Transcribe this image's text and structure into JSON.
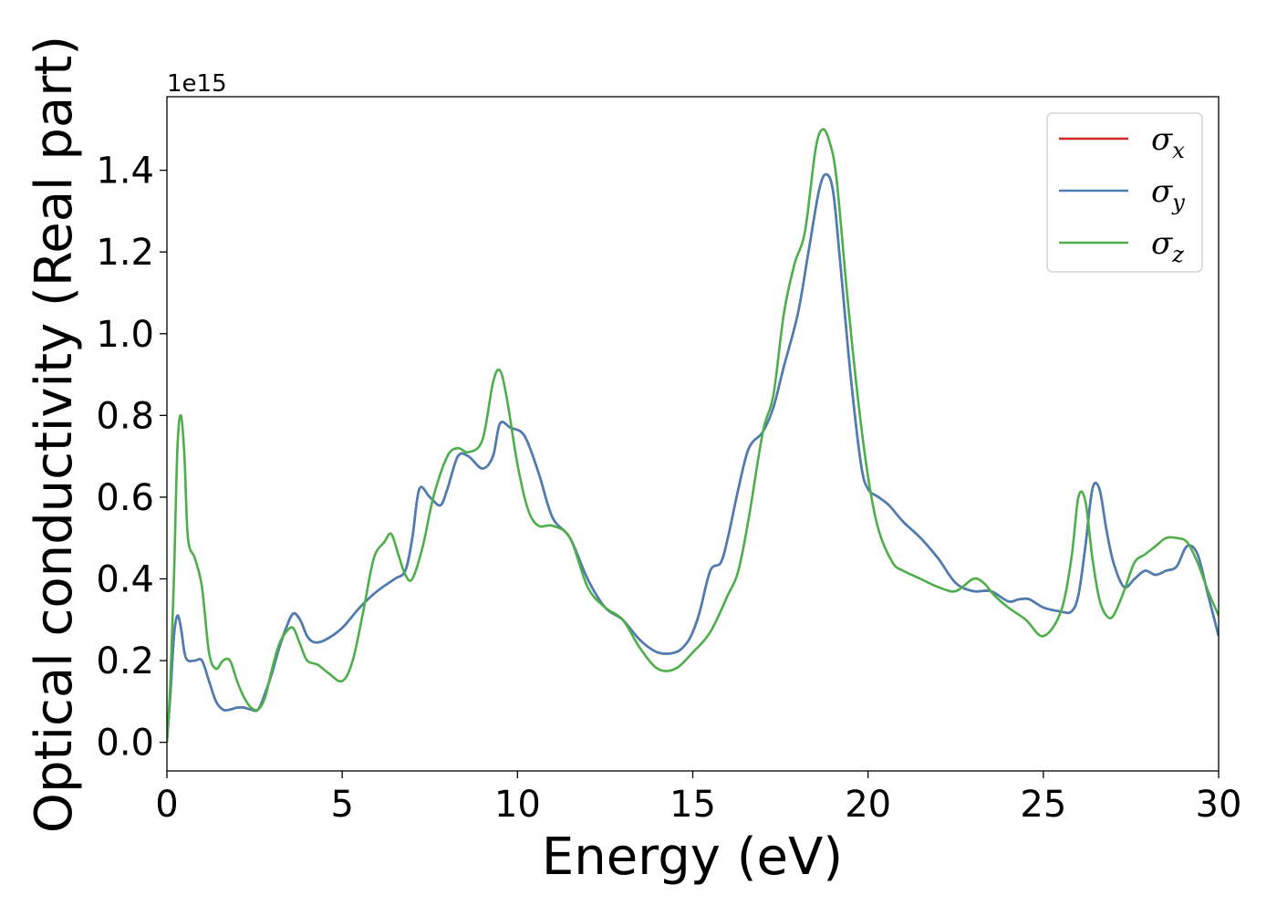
{
  "chart_data": {
    "type": "line",
    "xlabel": "Energy (eV)",
    "ylabel": "Optical conductivity (Real part)",
    "y_offset_label": "1e15",
    "xlim": [
      0,
      30
    ],
    "ylim": [
      -0.07,
      1.58
    ],
    "x_ticks": [
      0,
      5,
      10,
      15,
      20,
      25,
      30
    ],
    "x_tick_labels": [
      "0",
      "5",
      "10",
      "15",
      "20",
      "25",
      "30"
    ],
    "y_ticks": [
      0.0,
      0.2,
      0.4,
      0.6,
      0.8,
      1.0,
      1.2,
      1.4
    ],
    "y_tick_labels": [
      "0.0",
      "0.2",
      "0.4",
      "0.6",
      "0.8",
      "1.0",
      "1.2",
      "1.4"
    ],
    "grid": false,
    "legend_position": "top-right",
    "series": [
      {
        "name": "σ",
        "subscript": "x",
        "color": "#d62728",
        "x": [
          0,
          0.1,
          0.2,
          0.3,
          0.4,
          0.5,
          0.6,
          0.8,
          1.0,
          1.2,
          1.4,
          1.6,
          1.8,
          2.0,
          2.2,
          2.4,
          2.6,
          2.8,
          3.0,
          3.2,
          3.4,
          3.6,
          3.8,
          4.0,
          4.2,
          4.5,
          5.0,
          5.5,
          6.0,
          6.5,
          6.8,
          7.0,
          7.2,
          7.5,
          7.8,
          8.0,
          8.3,
          8.6,
          9.0,
          9.3,
          9.5,
          9.8,
          10.2,
          10.6,
          11.0,
          11.5,
          12.0,
          12.5,
          13.0,
          13.5,
          14.0,
          14.5,
          14.8,
          15.0,
          15.2,
          15.5,
          15.8,
          16.0,
          16.3,
          16.6,
          17.0,
          17.3,
          17.6,
          18.0,
          18.3,
          18.6,
          18.8,
          19.0,
          19.2,
          19.5,
          19.8,
          20.0,
          20.3,
          20.6,
          21.0,
          21.5,
          22.0,
          22.5,
          23.0,
          23.5,
          24.0,
          24.3,
          24.6,
          25.0,
          25.5,
          25.8,
          26.0,
          26.2,
          26.4,
          26.6,
          26.8,
          27.0,
          27.3,
          27.6,
          27.9,
          28.2,
          28.5,
          28.8,
          29.1,
          29.4,
          29.7,
          30.0
        ],
        "values": [
          0.0,
          0.12,
          0.26,
          0.31,
          0.28,
          0.22,
          0.2,
          0.2,
          0.2,
          0.15,
          0.1,
          0.08,
          0.08,
          0.085,
          0.085,
          0.08,
          0.08,
          0.12,
          0.17,
          0.23,
          0.28,
          0.315,
          0.3,
          0.26,
          0.245,
          0.25,
          0.28,
          0.33,
          0.37,
          0.4,
          0.42,
          0.5,
          0.62,
          0.6,
          0.58,
          0.62,
          0.7,
          0.7,
          0.67,
          0.7,
          0.78,
          0.77,
          0.75,
          0.66,
          0.55,
          0.5,
          0.4,
          0.33,
          0.3,
          0.25,
          0.22,
          0.22,
          0.24,
          0.27,
          0.32,
          0.42,
          0.44,
          0.5,
          0.62,
          0.72,
          0.76,
          0.82,
          0.92,
          1.05,
          1.2,
          1.35,
          1.39,
          1.35,
          1.18,
          0.9,
          0.68,
          0.62,
          0.6,
          0.58,
          0.54,
          0.5,
          0.45,
          0.39,
          0.37,
          0.37,
          0.345,
          0.35,
          0.35,
          0.33,
          0.32,
          0.32,
          0.36,
          0.48,
          0.62,
          0.62,
          0.52,
          0.44,
          0.38,
          0.4,
          0.42,
          0.41,
          0.42,
          0.43,
          0.48,
          0.46,
          0.36,
          0.26
        ]
      },
      {
        "name": "σ",
        "subscript": "y",
        "color": "#4a7fb5",
        "x": [
          0,
          0.1,
          0.2,
          0.3,
          0.4,
          0.5,
          0.6,
          0.8,
          1.0,
          1.2,
          1.4,
          1.6,
          1.8,
          2.0,
          2.2,
          2.4,
          2.6,
          2.8,
          3.0,
          3.2,
          3.4,
          3.6,
          3.8,
          4.0,
          4.2,
          4.5,
          5.0,
          5.5,
          6.0,
          6.5,
          6.8,
          7.0,
          7.2,
          7.5,
          7.8,
          8.0,
          8.3,
          8.6,
          9.0,
          9.3,
          9.5,
          9.8,
          10.2,
          10.6,
          11.0,
          11.5,
          12.0,
          12.5,
          13.0,
          13.5,
          14.0,
          14.5,
          14.8,
          15.0,
          15.2,
          15.5,
          15.8,
          16.0,
          16.3,
          16.6,
          17.0,
          17.3,
          17.6,
          18.0,
          18.3,
          18.6,
          18.8,
          19.0,
          19.2,
          19.5,
          19.8,
          20.0,
          20.3,
          20.6,
          21.0,
          21.5,
          22.0,
          22.5,
          23.0,
          23.5,
          24.0,
          24.3,
          24.6,
          25.0,
          25.5,
          25.8,
          26.0,
          26.2,
          26.4,
          26.6,
          26.8,
          27.0,
          27.3,
          27.6,
          27.9,
          28.2,
          28.5,
          28.8,
          29.1,
          29.4,
          29.7,
          30.0
        ],
        "values": [
          0.0,
          0.12,
          0.26,
          0.31,
          0.28,
          0.22,
          0.2,
          0.2,
          0.2,
          0.15,
          0.1,
          0.08,
          0.08,
          0.085,
          0.085,
          0.08,
          0.08,
          0.12,
          0.17,
          0.23,
          0.28,
          0.315,
          0.3,
          0.26,
          0.245,
          0.25,
          0.28,
          0.33,
          0.37,
          0.4,
          0.42,
          0.5,
          0.62,
          0.6,
          0.58,
          0.62,
          0.7,
          0.7,
          0.67,
          0.7,
          0.78,
          0.77,
          0.75,
          0.66,
          0.55,
          0.5,
          0.4,
          0.33,
          0.3,
          0.25,
          0.22,
          0.22,
          0.24,
          0.27,
          0.32,
          0.42,
          0.44,
          0.5,
          0.62,
          0.72,
          0.76,
          0.82,
          0.92,
          1.05,
          1.2,
          1.35,
          1.39,
          1.35,
          1.18,
          0.9,
          0.68,
          0.62,
          0.6,
          0.58,
          0.54,
          0.5,
          0.45,
          0.39,
          0.37,
          0.37,
          0.345,
          0.35,
          0.35,
          0.33,
          0.32,
          0.32,
          0.36,
          0.48,
          0.62,
          0.62,
          0.52,
          0.44,
          0.38,
          0.4,
          0.42,
          0.41,
          0.42,
          0.43,
          0.48,
          0.46,
          0.36,
          0.26
        ]
      },
      {
        "name": "σ",
        "subscript": "z",
        "color": "#4daf4a",
        "x": [
          0,
          0.1,
          0.2,
          0.3,
          0.4,
          0.5,
          0.6,
          0.8,
          1.0,
          1.2,
          1.4,
          1.6,
          1.8,
          2.0,
          2.2,
          2.4,
          2.6,
          2.8,
          3.0,
          3.2,
          3.4,
          3.6,
          3.8,
          4.0,
          4.3,
          4.6,
          5.0,
          5.3,
          5.6,
          5.9,
          6.2,
          6.4,
          6.6,
          6.8,
          7.0,
          7.3,
          7.6,
          8.0,
          8.3,
          8.6,
          9.0,
          9.3,
          9.5,
          9.7,
          10.0,
          10.3,
          10.6,
          11.0,
          11.5,
          12.0,
          12.5,
          13.0,
          13.5,
          14.0,
          14.5,
          15.0,
          15.5,
          16.0,
          16.3,
          16.6,
          17.0,
          17.3,
          17.6,
          17.9,
          18.2,
          18.5,
          18.7,
          18.9,
          19.1,
          19.4,
          19.7,
          20.0,
          20.3,
          20.7,
          21.0,
          21.5,
          22.0,
          22.5,
          23.0,
          23.3,
          23.6,
          24.0,
          24.5,
          25.0,
          25.5,
          25.8,
          26.0,
          26.2,
          26.4,
          26.6,
          26.8,
          27.0,
          27.3,
          27.6,
          27.9,
          28.2,
          28.5,
          28.8,
          29.1,
          29.4,
          29.7,
          30.0
        ],
        "values": [
          0.0,
          0.15,
          0.4,
          0.72,
          0.8,
          0.7,
          0.5,
          0.45,
          0.38,
          0.22,
          0.18,
          0.2,
          0.2,
          0.15,
          0.11,
          0.085,
          0.08,
          0.11,
          0.18,
          0.24,
          0.27,
          0.28,
          0.24,
          0.2,
          0.19,
          0.17,
          0.15,
          0.2,
          0.32,
          0.45,
          0.49,
          0.51,
          0.46,
          0.41,
          0.4,
          0.48,
          0.6,
          0.7,
          0.72,
          0.71,
          0.74,
          0.88,
          0.91,
          0.84,
          0.68,
          0.57,
          0.53,
          0.53,
          0.5,
          0.38,
          0.33,
          0.3,
          0.23,
          0.18,
          0.18,
          0.22,
          0.27,
          0.36,
          0.42,
          0.55,
          0.76,
          0.85,
          1.05,
          1.17,
          1.25,
          1.45,
          1.5,
          1.47,
          1.38,
          1.1,
          0.85,
          0.65,
          0.52,
          0.44,
          0.42,
          0.4,
          0.38,
          0.37,
          0.4,
          0.39,
          0.36,
          0.33,
          0.3,
          0.26,
          0.32,
          0.45,
          0.6,
          0.59,
          0.45,
          0.35,
          0.31,
          0.31,
          0.37,
          0.44,
          0.46,
          0.48,
          0.5,
          0.5,
          0.49,
          0.44,
          0.37,
          0.31
        ]
      }
    ]
  }
}
